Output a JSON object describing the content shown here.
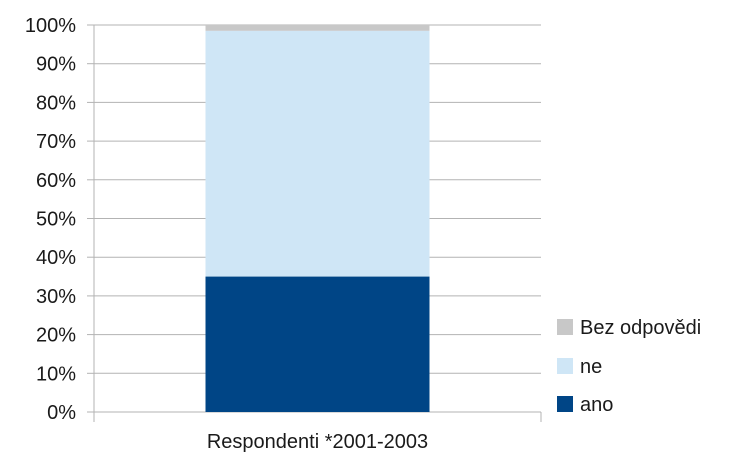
{
  "chart_data": {
    "type": "bar",
    "stacked": true,
    "percent_scale": true,
    "categories": [
      "Respondenti *2001-2003"
    ],
    "series": [
      {
        "name": "ano",
        "values": [
          35
        ],
        "color": "#004586"
      },
      {
        "name": "ne",
        "values": [
          63.5
        ],
        "color": "#cfe6f6"
      },
      {
        "name": "Bez odpovědi",
        "values": [
          1.5
        ],
        "color": "#c8c8c8"
      }
    ],
    "yticks": [
      "0%",
      "10%",
      "20%",
      "30%",
      "40%",
      "50%",
      "60%",
      "70%",
      "80%",
      "90%",
      "100%"
    ],
    "ylim": [
      0,
      100
    ],
    "grid": true,
    "legend_position": "right-bottom",
    "legend_order": [
      "Bez odpovědi",
      "ne",
      "ano"
    ],
    "title": "",
    "xlabel": "",
    "ylabel": ""
  }
}
